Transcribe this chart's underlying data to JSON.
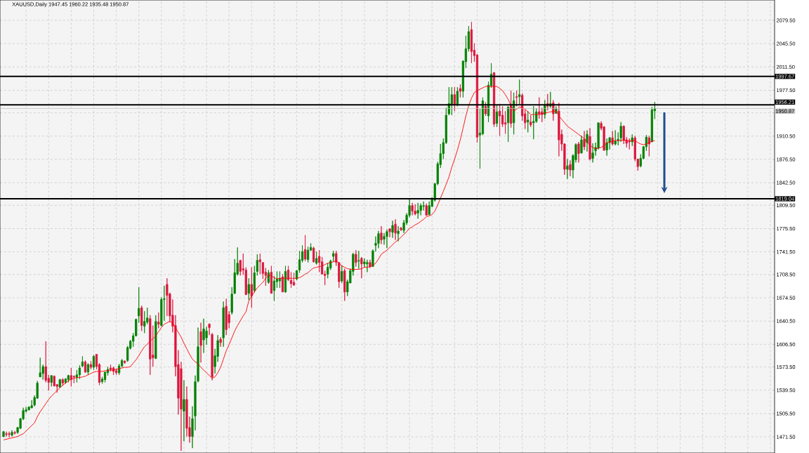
{
  "chart_data": {
    "type": "candlestick",
    "title": "XAUUSD,Daily 1947.45 1960.22 1935.48 1950.87",
    "categories": [
      null,
      null,
      null,
      null,
      null,
      null,
      null,
      null,
      null,
      null,
      null,
      null,
      null,
      null,
      null,
      null,
      null,
      null,
      null,
      null,
      null,
      null,
      null,
      null,
      null,
      null,
      null,
      null,
      null,
      null,
      null,
      null,
      null,
      null,
      null,
      null,
      null,
      null,
      null,
      null,
      null,
      null,
      null,
      null,
      null,
      null,
      null,
      null,
      null,
      null,
      null,
      null,
      null,
      null,
      null,
      null,
      null,
      null,
      null,
      null,
      null,
      null,
      null,
      null,
      null,
      null,
      null,
      null,
      null,
      null,
      null,
      null,
      null,
      null,
      null,
      null,
      null,
      null,
      null,
      null,
      null,
      null,
      null,
      null,
      null,
      null,
      null,
      null,
      null,
      null,
      null,
      null,
      null,
      null,
      null,
      null,
      null,
      null,
      null,
      null,
      null,
      null,
      null,
      null,
      null,
      null,
      null,
      null,
      null,
      null,
      null,
      null,
      null,
      null,
      null,
      null,
      null,
      null,
      null,
      null,
      null,
      null,
      null,
      null,
      null,
      null,
      null,
      null,
      null,
      null,
      null,
      null,
      null,
      null,
      null,
      null,
      null,
      null,
      null,
      null,
      null,
      null,
      null,
      null,
      null,
      null,
      null,
      null,
      null,
      null,
      null,
      null,
      null,
      null,
      null,
      null,
      null,
      null,
      null,
      null,
      null,
      null,
      null,
      null,
      null,
      null,
      null,
      null,
      null,
      null,
      null,
      null,
      null,
      null,
      null,
      null,
      null,
      null,
      null,
      null,
      null,
      null,
      null,
      null,
      null,
      null,
      null,
      null,
      null,
      null,
      null,
      null,
      null,
      null,
      null,
      null,
      null,
      null,
      null,
      null,
      null,
      null,
      null,
      null,
      null,
      null,
      null,
      null,
      null,
      null,
      null,
      null,
      null,
      null,
      null,
      null,
      null,
      null,
      null,
      null,
      null,
      null,
      null,
      null,
      null,
      null,
      null,
      null,
      null,
      null,
      null,
      null
    ],
    "ohlc": [
      [
        1472,
        1480,
        1471,
        1479
      ],
      [
        1476,
        1479,
        1472,
        1475
      ],
      [
        1476,
        1479,
        1471,
        1475
      ],
      [
        1474,
        1481,
        1472,
        1478
      ],
      [
        1478,
        1480,
        1475,
        1477
      ],
      [
        1478,
        1486,
        1476,
        1485
      ],
      [
        1484,
        1499,
        1483,
        1498
      ],
      [
        1498,
        1514,
        1496,
        1510
      ],
      [
        1509,
        1515,
        1507,
        1511
      ],
      [
        1511,
        1516,
        1510,
        1515
      ],
      [
        1514,
        1525,
        1513,
        1517
      ],
      [
        1518,
        1532,
        1516,
        1529
      ],
      [
        1528,
        1553,
        1527,
        1550
      ],
      [
        1559,
        1587,
        1559,
        1565
      ],
      [
        1564,
        1577,
        1555,
        1574
      ],
      [
        1574,
        1611,
        1551,
        1554
      ],
      [
        1557,
        1562,
        1539,
        1551
      ],
      [
        1551,
        1561,
        1545,
        1561
      ],
      [
        1560,
        1561,
        1545,
        1546
      ],
      [
        1548,
        1548,
        1536,
        1545
      ],
      [
        1544,
        1556,
        1544,
        1555
      ],
      [
        1555,
        1557,
        1546,
        1550
      ],
      [
        1551,
        1557,
        1549,
        1556
      ],
      [
        1555,
        1562,
        1551,
        1561
      ],
      [
        1561,
        1572,
        1545,
        1555
      ],
      [
        1560,
        1561,
        1550,
        1559
      ],
      [
        1558,
        1569,
        1551,
        1562
      ],
      [
        1562,
        1576,
        1556,
        1572
      ],
      [
        1575,
        1589,
        1573,
        1581
      ],
      [
        1581,
        1583,
        1565,
        1566
      ],
      [
        1566,
        1579,
        1562,
        1577
      ],
      [
        1577,
        1582,
        1570,
        1573
      ],
      [
        1573,
        1591,
        1569,
        1589
      ],
      [
        1592,
        1592,
        1570,
        1574
      ],
      [
        1577,
        1579,
        1547,
        1551
      ],
      [
        1552,
        1559,
        1549,
        1556
      ],
      [
        1555,
        1566,
        1551,
        1566
      ],
      [
        1565,
        1574,
        1561,
        1570
      ],
      [
        1572,
        1577,
        1567,
        1570
      ],
      [
        1572,
        1574,
        1562,
        1567
      ],
      [
        1568,
        1571,
        1562,
        1565
      ],
      [
        1565,
        1578,
        1562,
        1575
      ],
      [
        1575,
        1585,
        1573,
        1583
      ],
      [
        1582,
        1583,
        1578,
        1580
      ],
      [
        1583,
        1604,
        1581,
        1602
      ],
      [
        1601,
        1613,
        1599,
        1611
      ],
      [
        1611,
        1623,
        1603,
        1619
      ],
      [
        1619,
        1644,
        1618,
        1643
      ],
      [
        1648,
        1690,
        1638,
        1659
      ],
      [
        1660,
        1663,
        1626,
        1634
      ],
      [
        1633,
        1655,
        1623,
        1640
      ],
      [
        1639,
        1660,
        1636,
        1645
      ],
      [
        1644,
        1649,
        1562,
        1585
      ],
      [
        1591,
        1634,
        1574,
        1587
      ],
      [
        1586,
        1649,
        1585,
        1640
      ],
      [
        1639,
        1653,
        1630,
        1636
      ],
      [
        1634,
        1675,
        1633,
        1672
      ],
      [
        1672,
        1692,
        1641,
        1673
      ],
      [
        1694,
        1703,
        1648,
        1678
      ],
      [
        1680,
        1682,
        1639,
        1648
      ],
      [
        1649,
        1672,
        1624,
        1633
      ],
      [
        1634,
        1649,
        1560,
        1574
      ],
      [
        1577,
        1598,
        1504,
        1528
      ],
      [
        1571,
        1581,
        1451,
        1512
      ],
      [
        1509,
        1554,
        1465,
        1526
      ],
      [
        1526,
        1545,
        1472,
        1484
      ],
      [
        1485,
        1501,
        1463,
        1472
      ],
      [
        1472,
        1516,
        1455,
        1498
      ],
      [
        1502,
        1561,
        1481,
        1552
      ],
      [
        1553,
        1631,
        1551,
        1603
      ],
      [
        1625,
        1638,
        1580,
        1605
      ],
      [
        1613,
        1644,
        1594,
        1629
      ],
      [
        1616,
        1632,
        1606,
        1626
      ],
      [
        1636,
        1637,
        1620,
        1631
      ],
      [
        1621,
        1623,
        1554,
        1559
      ],
      [
        1574,
        1600,
        1564,
        1590
      ],
      [
        1589,
        1620,
        1581,
        1612
      ],
      [
        1614,
        1617,
        1603,
        1609
      ],
      [
        1616,
        1669,
        1603,
        1660
      ],
      [
        1662,
        1673,
        1620,
        1628
      ],
      [
        1650,
        1655,
        1630,
        1638
      ],
      [
        1653,
        1690,
        1650,
        1680
      ],
      [
        1681,
        1731,
        1680,
        1711
      ],
      [
        1709,
        1748,
        1707,
        1725
      ],
      [
        1729,
        1730,
        1707,
        1713
      ],
      [
        1717,
        1739,
        1708,
        1715
      ],
      [
        1715,
        1719,
        1679,
        1679
      ],
      [
        1681,
        1703,
        1671,
        1694
      ],
      [
        1694,
        1719,
        1660,
        1677
      ],
      [
        1685,
        1721,
        1682,
        1711
      ],
      [
        1713,
        1738,
        1707,
        1729
      ],
      [
        1730,
        1739,
        1709,
        1727
      ],
      [
        1726,
        1726,
        1702,
        1710
      ],
      [
        1712,
        1718,
        1692,
        1707
      ],
      [
        1697,
        1715,
        1695,
        1711
      ],
      [
        1712,
        1721,
        1681,
        1681
      ],
      [
        1685,
        1706,
        1670,
        1699
      ],
      [
        1698,
        1713,
        1689,
        1702
      ],
      [
        1699,
        1713,
        1689,
        1703
      ],
      [
        1705,
        1709,
        1683,
        1683
      ],
      [
        1683,
        1721,
        1682,
        1713
      ],
      [
        1715,
        1721,
        1699,
        1701
      ],
      [
        1700,
        1712,
        1689,
        1695
      ],
      [
        1697,
        1711,
        1692,
        1693
      ],
      [
        1702,
        1715,
        1700,
        1714
      ],
      [
        1715,
        1743,
        1711,
        1730
      ],
      [
        1729,
        1751,
        1726,
        1742
      ],
      [
        1745,
        1766,
        1728,
        1731
      ],
      [
        1730,
        1749,
        1726,
        1744
      ],
      [
        1744,
        1754,
        1743,
        1748
      ],
      [
        1747,
        1749,
        1726,
        1727
      ],
      [
        1725,
        1742,
        1723,
        1732
      ],
      [
        1735,
        1744,
        1712,
        1726
      ],
      [
        1727,
        1734,
        1709,
        1709
      ],
      [
        1709,
        1714,
        1693,
        1707
      ],
      [
        1709,
        1725,
        1703,
        1719
      ],
      [
        1718,
        1730,
        1715,
        1728
      ],
      [
        1735,
        1743,
        1727,
        1739
      ],
      [
        1739,
        1743,
        1721,
        1726
      ],
      [
        1726,
        1726,
        1689,
        1698
      ],
      [
        1699,
        1722,
        1696,
        1713
      ],
      [
        1714,
        1717,
        1670,
        1683
      ],
      [
        1683,
        1701,
        1677,
        1698
      ],
      [
        1696,
        1717,
        1696,
        1714
      ],
      [
        1713,
        1740,
        1707,
        1738
      ],
      [
        1738,
        1744,
        1720,
        1726
      ],
      [
        1728,
        1743,
        1717,
        1729
      ],
      [
        1732,
        1734,
        1703,
        1724
      ],
      [
        1724,
        1732,
        1719,
        1727
      ],
      [
        1724,
        1730,
        1712,
        1726
      ],
      [
        1726,
        1730,
        1718,
        1720
      ],
      [
        1720,
        1745,
        1720,
        1743
      ],
      [
        1751,
        1764,
        1742,
        1754
      ],
      [
        1754,
        1772,
        1747,
        1768
      ],
      [
        1769,
        1779,
        1753,
        1759
      ],
      [
        1760,
        1769,
        1752,
        1764
      ],
      [
        1764,
        1774,
        1747,
        1771
      ],
      [
        1775,
        1776,
        1763,
        1771
      ],
      [
        1770,
        1787,
        1762,
        1780
      ],
      [
        1782,
        1789,
        1759,
        1769
      ],
      [
        1768,
        1779,
        1757,
        1772
      ],
      [
        1776,
        1778,
        1772,
        1774
      ],
      [
        1773,
        1788,
        1769,
        1784
      ],
      [
        1784,
        1798,
        1781,
        1795
      ],
      [
        1795,
        1819,
        1792,
        1809
      ],
      [
        1809,
        1813,
        1795,
        1801
      ],
      [
        1801,
        1811,
        1795,
        1797
      ],
      [
        1798,
        1813,
        1790,
        1802
      ],
      [
        1802,
        1812,
        1795,
        1809
      ],
      [
        1808,
        1815,
        1802,
        1809
      ],
      [
        1809,
        1812,
        1795,
        1795
      ],
      [
        1796,
        1815,
        1795,
        1809
      ],
      [
        1808,
        1821,
        1807,
        1820
      ],
      [
        1817,
        1842,
        1815,
        1841
      ],
      [
        1841,
        1873,
        1839,
        1870
      ],
      [
        1869,
        1899,
        1864,
        1885
      ],
      [
        1885,
        1907,
        1877,
        1901
      ],
      [
        1901,
        1952,
        1899,
        1941
      ],
      [
        1943,
        1982,
        1941,
        1958
      ],
      [
        1956,
        1982,
        1941,
        1971
      ],
      [
        1971,
        1982,
        1947,
        1956
      ],
      [
        1956,
        1982,
        1954,
        1976
      ],
      [
        1980,
        1986,
        1967,
        1976
      ],
      [
        1976,
        2021,
        1967,
        2020
      ],
      [
        2019,
        2057,
        2010,
        2038
      ],
      [
        2038,
        2071,
        2034,
        2063
      ],
      [
        2066,
        2077,
        2017,
        2034
      ],
      [
        2036,
        2046,
        2019,
        2028
      ],
      [
        2029,
        2030,
        1901,
        1909
      ],
      [
        1912,
        1950,
        1863,
        1915
      ],
      [
        1914,
        1967,
        1912,
        1962
      ],
      [
        1954,
        1960,
        1940,
        1943
      ],
      [
        1940,
        1990,
        1931,
        1985
      ],
      [
        1984,
        2017,
        1981,
        2001
      ],
      [
        2003,
        2004,
        1924,
        1928
      ],
      [
        1929,
        1956,
        1924,
        1946
      ],
      [
        1947,
        1957,
        1911,
        1940
      ],
      [
        1941,
        1954,
        1924,
        1928
      ],
      [
        1930,
        1947,
        1914,
        1928
      ],
      [
        1930,
        1954,
        1902,
        1953
      ],
      [
        1955,
        1977,
        1923,
        1929
      ],
      [
        1930,
        1974,
        1913,
        1962
      ],
      [
        1968,
        1977,
        1954,
        1967
      ],
      [
        1968,
        1993,
        1957,
        1971
      ],
      [
        1970,
        1973,
        1933,
        1940
      ],
      [
        1943,
        1949,
        1921,
        1930
      ],
      [
        1931,
        1947,
        1916,
        1934
      ],
      [
        1931,
        1941,
        1924,
        1927
      ],
      [
        1930,
        1954,
        1906,
        1932
      ],
      [
        1932,
        1951,
        1930,
        1946
      ],
      [
        1946,
        1967,
        1936,
        1943
      ],
      [
        1946,
        1952,
        1931,
        1942
      ],
      [
        1942,
        1963,
        1936,
        1956
      ],
      [
        1958,
        1972,
        1948,
        1954
      ],
      [
        1954,
        1975,
        1952,
        1958
      ],
      [
        1959,
        1963,
        1933,
        1943
      ],
      [
        1944,
        1954,
        1943,
        1950
      ],
      [
        1947,
        1959,
        1881,
        1905
      ],
      [
        1913,
        1920,
        1889,
        1899
      ],
      [
        1899,
        1900,
        1854,
        1862
      ],
      [
        1862,
        1877,
        1848,
        1867
      ],
      [
        1869,
        1875,
        1852,
        1861
      ],
      [
        1861,
        1884,
        1849,
        1882
      ],
      [
        1876,
        1900,
        1872,
        1898
      ],
      [
        1899,
        1902,
        1872,
        1885
      ],
      [
        1886,
        1911,
        1885,
        1905
      ],
      [
        1906,
        1918,
        1890,
        1895
      ],
      [
        1901,
        1919,
        1888,
        1913
      ],
      [
        1910,
        1922,
        1875,
        1877
      ],
      [
        1878,
        1900,
        1872,
        1886
      ],
      [
        1889,
        1901,
        1882,
        1894
      ],
      [
        1893,
        1930,
        1891,
        1930
      ],
      [
        1929,
        1932,
        1919,
        1922
      ],
      [
        1924,
        1925,
        1889,
        1890
      ],
      [
        1890,
        1907,
        1882,
        1901
      ],
      [
        1901,
        1909,
        1891,
        1908
      ],
      [
        1908,
        1918,
        1897,
        1899
      ],
      [
        1899,
        1919,
        1897,
        1903
      ],
      [
        1904,
        1916,
        1897,
        1906
      ],
      [
        1908,
        1931,
        1902,
        1925
      ],
      [
        1925,
        1926,
        1899,
        1904
      ],
      [
        1905,
        1909,
        1894,
        1900
      ],
      [
        1903,
        1907,
        1891,
        1902
      ],
      [
        1902,
        1913,
        1896,
        1908
      ],
      [
        1908,
        1911,
        1874,
        1877
      ],
      [
        1877,
        1877,
        1860,
        1866
      ],
      [
        1867,
        1884,
        1865,
        1878
      ],
      [
        1878,
        1896,
        1877,
        1895
      ],
      [
        1895,
        1912,
        1889,
        1909
      ],
      [
        1908,
        1911,
        1881,
        1899
      ],
      [
        1902,
        1953,
        1902,
        1949
      ],
      [
        1947.45,
        1960.22,
        1935.48,
        1950.87
      ]
    ],
    "series": [
      {
        "type": "line",
        "color": "#ff0000",
        "values": [
          1467,
          1468,
          1469,
          1470,
          1471,
          1472,
          1474,
          1476,
          1480,
          1484,
          1488,
          1492,
          1501,
          1508,
          1514,
          1520,
          1526,
          1531,
          1535,
          1539,
          1543,
          1547,
          1550,
          1553,
          1556,
          1557,
          1558,
          1558,
          1559,
          1560,
          1562,
          1564,
          1566,
          1567,
          1567,
          1567,
          1568,
          1568,
          1569,
          1569,
          1570,
          1571,
          1572,
          1573,
          1573,
          1574,
          1579,
          1584,
          1590,
          1597,
          1603,
          1607,
          1611,
          1615,
          1619,
          1625,
          1631,
          1636,
          1638,
          1640,
          1638,
          1631,
          1624,
          1617,
          1608,
          1600,
          1592,
          1585,
          1581,
          1578,
          1573,
          1569,
          1565,
          1561,
          1557,
          1559,
          1565,
          1573,
          1585,
          1597,
          1606,
          1616,
          1626,
          1634,
          1641,
          1648,
          1654,
          1670,
          1677,
          1683,
          1689,
          1693,
          1697,
          1703,
          1708,
          1706,
          1704,
          1702,
          1703,
          1703,
          1703,
          1703,
          1703,
          1703,
          1703,
          1704,
          1706,
          1709,
          1711,
          1715,
          1718,
          1719,
          1720,
          1721,
          1723,
          1725,
          1726,
          1727,
          1729,
          1725,
          1721,
          1719,
          1717,
          1716,
          1716,
          1716,
          1716,
          1717,
          1719,
          1719,
          1720,
          1722,
          1725,
          1731,
          1738,
          1741,
          1744,
          1748,
          1752,
          1756,
          1759,
          1763,
          1767,
          1771,
          1776,
          1778,
          1781,
          1783,
          1786,
          1789,
          1793,
          1794,
          1796,
          1801,
          1810,
          1820,
          1830,
          1840,
          1851,
          1865,
          1877,
          1890,
          1905,
          1922,
          1940,
          1955,
          1966,
          1974,
          1977,
          1979,
          1981,
          1983,
          1983,
          1983,
          1983,
          1983,
          1980,
          1977,
          1971,
          1964,
          1955,
          1947,
          1950,
          1953,
          1952,
          1950,
          1946,
          1942,
          1942,
          1942,
          1942,
          1943,
          1944,
          1945,
          1946,
          1947,
          1947,
          1940,
          1935,
          1930,
          1925,
          1922,
          1919,
          1916,
          1913,
          1910,
          1907,
          1902,
          1897,
          1894,
          1892,
          1893,
          1894,
          1897,
          1900,
          1902,
          1903,
          1904,
          1904,
          1904,
          1905,
          1904,
          1904,
          1904,
          1904,
          1901,
          1899,
          1898,
          1899,
          1901,
          1903,
          1904
        ]
      }
    ],
    "ylim": [
      1447.9,
      2109.2
    ],
    "yticks": [
      {
        "value": 1471.5,
        "label": "1471.50"
      },
      {
        "value": 1505.5,
        "label": "1505.50"
      },
      {
        "value": 1539.5,
        "label": "1539.50"
      },
      {
        "value": 1573.5,
        "label": "1573.50"
      },
      {
        "value": 1606.5,
        "label": "1606.50"
      },
      {
        "value": 1640.5,
        "label": "1640.50"
      },
      {
        "value": 1674.5,
        "label": "1674.50"
      },
      {
        "value": 1708.5,
        "label": "1708.50"
      },
      {
        "value": 1741.5,
        "label": "1741.50"
      },
      {
        "value": 1775.5,
        "label": "1775.50"
      },
      {
        "value": 1809.5,
        "label": "1809.50"
      },
      {
        "value": 1842.5,
        "label": "1842.50"
      },
      {
        "value": 1876.5,
        "label": "1876.50"
      },
      {
        "value": 1910.5,
        "label": "1910.50"
      },
      {
        "value": 1944.5,
        "label": null
      },
      {
        "value": 1977.5,
        "label": "1977.50"
      },
      {
        "value": 2011.5,
        "label": "2011.50"
      },
      {
        "value": 2045.5,
        "label": "2045.50"
      },
      {
        "value": 2079.5,
        "label": "2079.50"
      }
    ],
    "ref_lines": [
      {
        "axis": "y",
        "value": 1997.67,
        "label": "1997.67",
        "color": "#000000"
      },
      {
        "axis": "y",
        "value": 1956.21,
        "label": "1956.21",
        "color": "#000000"
      },
      {
        "axis": "y",
        "value": 1950.87,
        "label": "1950.87",
        "color": "#c0c0c0"
      },
      {
        "axis": "y",
        "value": 1819.04,
        "label": "1819.04",
        "color": "#000000"
      }
    ],
    "grid": true,
    "tick_labels": "y"
  }
}
